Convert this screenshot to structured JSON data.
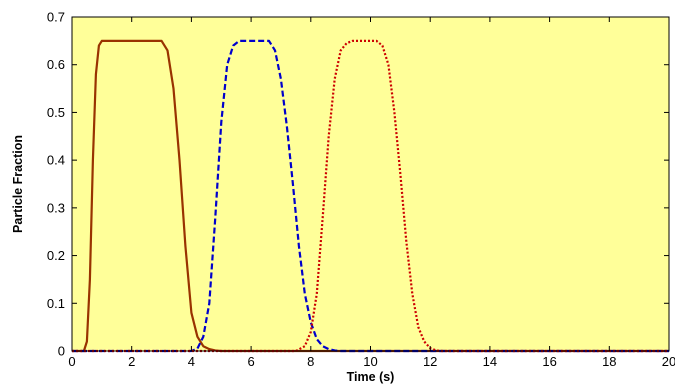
{
  "chart_data": {
    "type": "line",
    "title": "",
    "xlabel": "Time (s)",
    "ylabel": "Particle Fraction",
    "xlim": [
      0,
      20
    ],
    "ylim": [
      0,
      0.7
    ],
    "xticks": [
      0,
      2,
      4,
      6,
      8,
      10,
      12,
      14,
      16,
      18,
      20
    ],
    "yticks": [
      0,
      0.1,
      0.2,
      0.3,
      0.4,
      0.5,
      0.6,
      0.7
    ],
    "xtick_labels": [
      "0",
      "2",
      "4",
      "6",
      "8",
      "10",
      "12",
      "14",
      "16",
      "18",
      "20"
    ],
    "ytick_labels": [
      "0",
      "0.1",
      "0.2",
      "0.3",
      "0.4",
      "0.5",
      "0.6",
      "0.7"
    ],
    "grid": false,
    "legend": "none",
    "plot_background": "#ffff99",
    "series": [
      {
        "color": "#993300",
        "line_style": "solid",
        "x": [
          0,
          0.4,
          0.5,
          0.6,
          0.7,
          0.8,
          0.9,
          1.0,
          1.2,
          3.0,
          3.2,
          3.4,
          3.6,
          3.8,
          4.0,
          4.2,
          4.4,
          4.6,
          4.8,
          5.0,
          20
        ],
        "y": [
          0,
          0,
          0.02,
          0.15,
          0.4,
          0.58,
          0.64,
          0.65,
          0.65,
          0.65,
          0.63,
          0.55,
          0.4,
          0.22,
          0.08,
          0.03,
          0.01,
          0.004,
          0.001,
          0,
          0
        ]
      },
      {
        "color": "#0000cc",
        "line_style": "dashed",
        "x": [
          0,
          4.0,
          4.2,
          4.4,
          4.6,
          4.8,
          5.0,
          5.2,
          5.4,
          5.6,
          5.8,
          6.0,
          6.6,
          6.8,
          7.0,
          7.2,
          7.4,
          7.6,
          7.8,
          8.0,
          8.2,
          8.4,
          8.6,
          8.8,
          9.0,
          20
        ],
        "y": [
          0,
          0,
          0.005,
          0.03,
          0.1,
          0.28,
          0.48,
          0.6,
          0.64,
          0.65,
          0.65,
          0.65,
          0.65,
          0.63,
          0.57,
          0.47,
          0.35,
          0.22,
          0.12,
          0.06,
          0.025,
          0.01,
          0.004,
          0.001,
          0,
          0
        ]
      },
      {
        "color": "#cc0000",
        "line_style": "dotted",
        "x": [
          0,
          7.5,
          7.8,
          8.0,
          8.2,
          8.4,
          8.6,
          8.8,
          9.0,
          9.2,
          9.4,
          9.6,
          10.2,
          10.4,
          10.6,
          10.8,
          11.0,
          11.2,
          11.4,
          11.6,
          11.8,
          12.0,
          12.2,
          12.4,
          20
        ],
        "y": [
          0,
          0,
          0.01,
          0.04,
          0.12,
          0.28,
          0.45,
          0.57,
          0.63,
          0.645,
          0.65,
          0.65,
          0.65,
          0.64,
          0.6,
          0.5,
          0.37,
          0.23,
          0.12,
          0.05,
          0.02,
          0.006,
          0.001,
          0,
          0
        ]
      }
    ]
  }
}
